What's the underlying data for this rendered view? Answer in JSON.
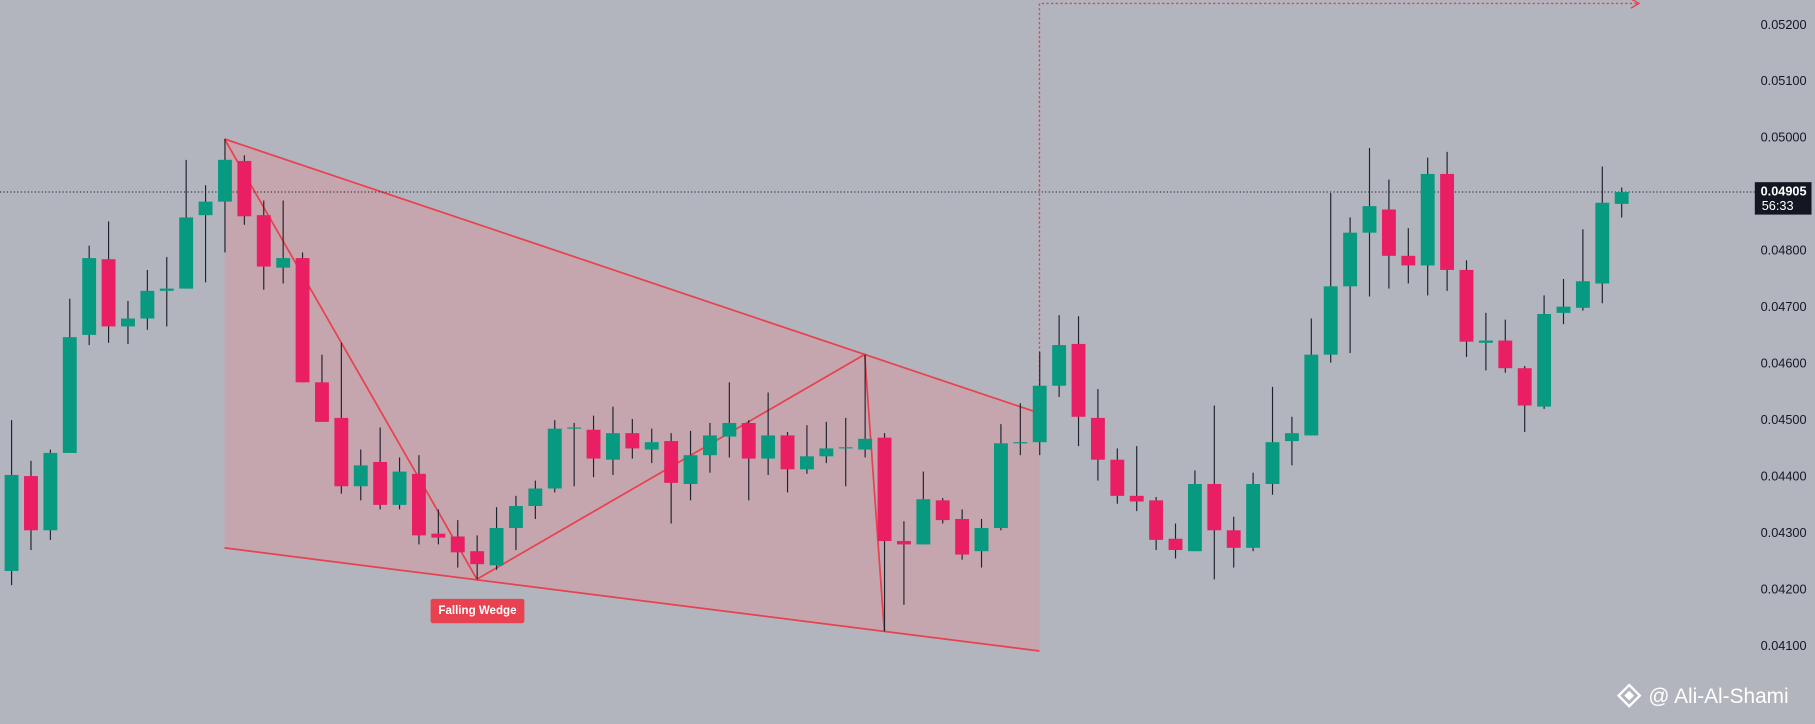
{
  "chart_data": {
    "type": "candlestick",
    "open": [
      0.04234,
      0.04402,
      0.04306,
      0.04443,
      0.04652,
      0.04786,
      0.04667,
      0.04681,
      0.0473,
      0.04734,
      0.04864,
      0.04888,
      0.0496,
      0.04864,
      0.04771,
      0.04788,
      0.04568,
      0.04505,
      0.04384,
      0.04427,
      0.04351,
      0.04406,
      0.043,
      0.04295,
      0.04269,
      0.04244,
      0.0431,
      0.04349,
      0.0438,
      0.04486,
      0.04484,
      0.04431,
      0.04478,
      0.04449,
      0.04464,
      0.04388,
      0.04439,
      0.04472,
      0.04496,
      0.04433,
      0.04474,
      0.04414,
      0.04437,
      0.04451,
      0.04449,
      0.0447,
      0.04287,
      0.04281,
      0.04359,
      0.04326,
      0.04269,
      0.0431,
      0.0446,
      0.04462,
      0.04562,
      0.04636,
      0.04505,
      0.04431,
      0.04367,
      0.04359,
      0.04291,
      0.04269,
      0.04388,
      0.04306,
      0.04275,
      0.04388,
      0.04464,
      0.04474,
      0.04617,
      0.04738,
      0.04833,
      0.04874,
      0.04792,
      0.04775,
      0.04937,
      0.04767,
      0.04638,
      0.04642,
      0.04593,
      0.04525,
      0.04691,
      0.047,
      0.04743,
      0.04884
    ],
    "high": [
      0.04501,
      0.04429,
      0.04449,
      0.04716,
      0.0481,
      0.04853,
      0.04712,
      0.04767,
      0.0479,
      0.04962,
      0.04917,
      0.04999,
      0.0497,
      0.0489,
      0.0489,
      0.04798,
      0.04617,
      0.04638,
      0.04449,
      0.04488,
      0.04435,
      0.04439,
      0.04343,
      0.04324,
      0.04297,
      0.04347,
      0.04367,
      0.04394,
      0.04501,
      0.04496,
      0.04509,
      0.04525,
      0.04503,
      0.04486,
      0.04478,
      0.04482,
      0.04496,
      0.04568,
      0.04501,
      0.0455,
      0.0448,
      0.04492,
      0.04498,
      0.04505,
      0.04617,
      0.04478,
      0.04322,
      0.0441,
      0.04363,
      0.04343,
      0.04326,
      0.04494,
      0.04531,
      0.04622,
      0.04687,
      0.04685,
      0.04556,
      0.04451,
      0.04455,
      0.04365,
      0.04318,
      0.04412,
      0.04527,
      0.0433,
      0.04408,
      0.0456,
      0.04507,
      0.04681,
      0.04903,
      0.0486,
      0.04983,
      0.04927,
      0.04841,
      0.04966,
      0.04976,
      0.04784,
      0.04691,
      0.04679,
      0.04597,
      0.04722,
      0.04751,
      0.04839,
      0.0495,
      0.04913
    ],
    "low": [
      0.04209,
      0.04271,
      0.04289,
      0.04443,
      0.04634,
      0.04638,
      0.04636,
      0.04661,
      0.04667,
      0.04734,
      0.04745,
      0.04798,
      0.04847,
      0.04732,
      0.04743,
      0.04568,
      0.04498,
      0.04371,
      0.04359,
      0.04343,
      0.04343,
      0.04281,
      0.04281,
      0.0424,
      0.04219,
      0.04236,
      0.04271,
      0.04326,
      0.04373,
      0.04384,
      0.044,
      0.04404,
      0.04433,
      0.04425,
      0.04318,
      0.04359,
      0.04408,
      0.04435,
      0.04359,
      0.04404,
      0.04373,
      0.04406,
      0.04425,
      0.04384,
      0.04435,
      0.04127,
      0.04174,
      0.04281,
      0.04318,
      0.04254,
      0.0424,
      0.04306,
      0.04439,
      0.04439,
      0.04542,
      0.04455,
      0.04394,
      0.04353,
      0.0434,
      0.04271,
      0.04256,
      0.04269,
      0.04219,
      0.0424,
      0.04269,
      0.04369,
      0.04421,
      0.04474,
      0.04603,
      0.0462,
      0.0472,
      0.04734,
      0.04743,
      0.04722,
      0.0473,
      0.04613,
      0.04589,
      0.04585,
      0.0448,
      0.04521,
      0.04671,
      0.04695,
      0.04708,
      0.0486
    ],
    "close": [
      0.04404,
      0.04306,
      0.04443,
      0.04648,
      0.04788,
      0.04667,
      0.04681,
      0.0473,
      0.04734,
      0.0486,
      0.04888,
      0.04962,
      0.04862,
      0.04773,
      0.04788,
      0.04568,
      0.04498,
      0.04384,
      0.04421,
      0.04351,
      0.0441,
      0.04297,
      0.04293,
      0.04267,
      0.04246,
      0.0431,
      0.04349,
      0.0438,
      0.04486,
      0.04488,
      0.04433,
      0.04478,
      0.04451,
      0.04462,
      0.0439,
      0.04439,
      0.04474,
      0.04496,
      0.04433,
      0.04474,
      0.04414,
      0.04437,
      0.04451,
      0.04453,
      0.04468,
      0.04287,
      0.04281,
      0.04361,
      0.04324,
      0.04263,
      0.0431,
      0.0446,
      0.04462,
      0.04562,
      0.04634,
      0.04507,
      0.04431,
      0.04367,
      0.04357,
      0.04289,
      0.04271,
      0.04388,
      0.04306,
      0.04275,
      0.04388,
      0.04462,
      0.04478,
      0.04617,
      0.04738,
      0.04833,
      0.0488,
      0.04792,
      0.04775,
      0.04937,
      0.04767,
      0.0464,
      0.04642,
      0.04593,
      0.04527,
      0.04689,
      0.04702,
      0.04747,
      0.04886,
      0.04905
    ],
    "up_color": "#089981",
    "down_color": "#e91e63",
    "wick_color": "#1e222d",
    "ylim": [
      0.03963,
      0.05245
    ],
    "yticks": [
      {
        "value": 0.041,
        "label": "0.04100"
      },
      {
        "value": 0.042,
        "label": "0.04200"
      },
      {
        "value": 0.043,
        "label": "0.04300"
      },
      {
        "value": 0.044,
        "label": "0.04400"
      },
      {
        "value": 0.045,
        "label": "0.04500"
      },
      {
        "value": 0.046,
        "label": "0.04600"
      },
      {
        "value": 0.047,
        "label": "0.04700"
      },
      {
        "value": 0.048,
        "label": "0.04800"
      },
      {
        "value": 0.049,
        "label": "0.04900"
      },
      {
        "value": 0.05,
        "label": "0.05000"
      },
      {
        "value": 0.051,
        "label": "0.05100"
      },
      {
        "value": 0.052,
        "label": "0.05200"
      }
    ],
    "grid": false,
    "last_price": {
      "value": 0.04905,
      "label": "0.04905"
    },
    "countdown": "56:33",
    "annotation": "Falling Wedge",
    "watermark": "@ Ali-Al-Shami"
  }
}
